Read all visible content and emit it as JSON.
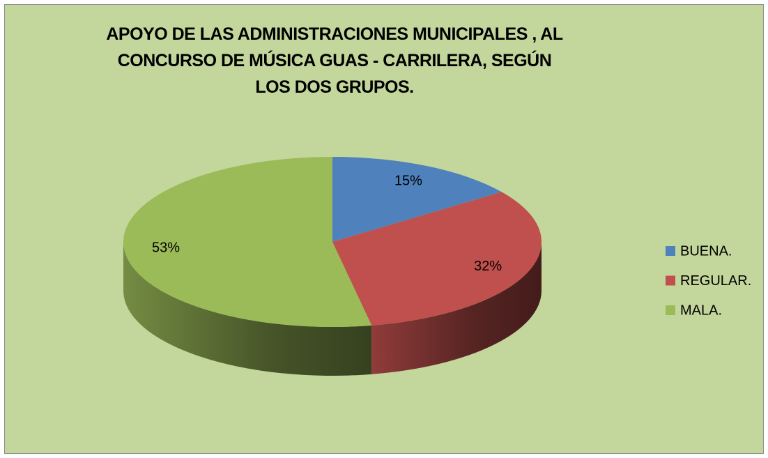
{
  "chart_data": {
    "type": "pie",
    "title": "APOYO DE LAS ADMINISTRACIONES MUNICIPALES , AL CONCURSO DE MÚSICA GUAS - CARRILERA, SEGÚN LOS DOS GRUPOS.",
    "categories": [
      "BUENA.",
      "REGULAR.",
      "MALA."
    ],
    "values": [
      15,
      32,
      53
    ],
    "value_labels": [
      "15%",
      "32%",
      "53%"
    ],
    "colors": [
      "#4f81bd",
      "#c0504d",
      "#9bbb59"
    ],
    "legend": "right"
  }
}
